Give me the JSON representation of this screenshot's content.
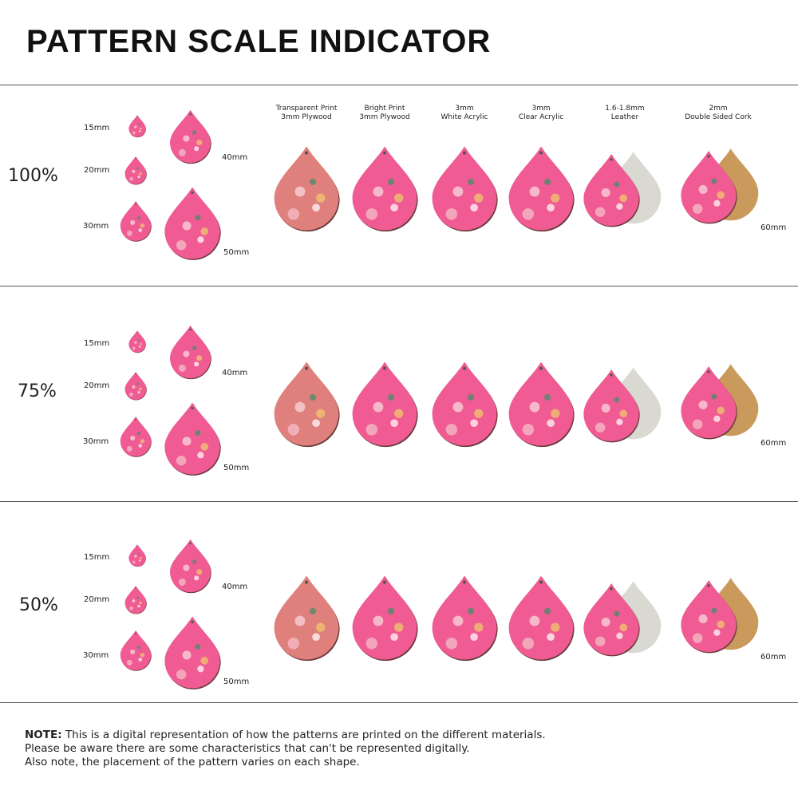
{
  "title": "PATTERN SCALE INDICATOR",
  "materials": [
    {
      "line1": "Transparent Print",
      "line2": "3mm Plywood"
    },
    {
      "line1": "Bright Print",
      "line2": "3mm Plywood"
    },
    {
      "line1": "3mm",
      "line2": "White Acrylic"
    },
    {
      "line1": "3mm",
      "line2": "Clear Acrylic"
    },
    {
      "line1": "1.6-1.8mm",
      "line2": "Leather"
    },
    {
      "line1": "2mm",
      "line2": "Double Sided Cork"
    }
  ],
  "rows": [
    {
      "scale": "100%",
      "sizes": [
        "15mm",
        "20mm",
        "30mm",
        "40mm",
        "50mm",
        "60mm"
      ]
    },
    {
      "scale": "75%",
      "sizes": [
        "15mm",
        "20mm",
        "30mm",
        "40mm",
        "50mm",
        "60mm"
      ]
    },
    {
      "scale": "50%",
      "sizes": [
        "15mm",
        "20mm",
        "30mm",
        "40mm",
        "50mm",
        "60mm"
      ]
    }
  ],
  "note": {
    "label": "NOTE:",
    "line1": " This is a digital representation of how the patterns are printed on the different materials.",
    "line2": "Please be aware there are some characteristics that can't be represented digitally.",
    "line3": "Also note, the placement of the pattern varies on each shape."
  },
  "colors": {
    "pink": "#ef5b92",
    "plywood": "#e0807c",
    "leather_back": "#d9d9d2",
    "cork": "#c99a5c"
  }
}
